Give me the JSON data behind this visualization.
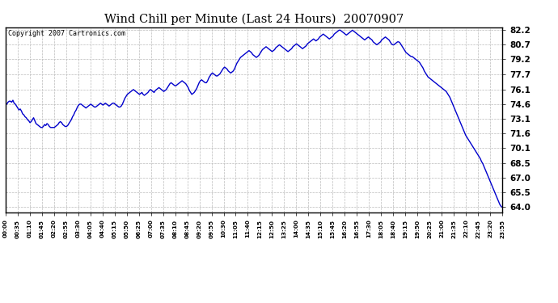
{
  "title": "Wind Chill per Minute (Last 24 Hours)  20070907",
  "copyright_text": "Copyright 2007 Cartronics.com",
  "line_color": "#0000CC",
  "background_color": "#ffffff",
  "plot_bg_color": "#ffffff",
  "grid_color": "#bbbbbb",
  "ylim": [
    63.5,
    82.5
  ],
  "yticks": [
    64.0,
    65.5,
    67.0,
    68.5,
    70.1,
    71.6,
    73.1,
    74.6,
    76.1,
    77.7,
    79.2,
    80.7,
    82.2
  ],
  "xtick_labels": [
    "00:00",
    "00:35",
    "01:10",
    "01:45",
    "02:20",
    "02:55",
    "03:30",
    "04:05",
    "04:40",
    "05:15",
    "05:50",
    "06:25",
    "07:00",
    "07:35",
    "08:10",
    "08:45",
    "09:20",
    "09:55",
    "10:30",
    "11:05",
    "11:40",
    "12:15",
    "12:50",
    "13:25",
    "14:00",
    "14:35",
    "15:10",
    "15:45",
    "16:20",
    "16:55",
    "17:30",
    "18:05",
    "18:40",
    "19:15",
    "19:50",
    "20:25",
    "21:00",
    "21:35",
    "22:10",
    "22:45",
    "23:20",
    "23:55"
  ],
  "data_points": [
    74.6,
    74.6,
    74.8,
    74.9,
    74.9,
    74.8,
    75.0,
    74.7,
    74.6,
    74.4,
    74.2,
    74.0,
    74.1,
    73.9,
    73.6,
    73.5,
    73.3,
    73.2,
    73.0,
    72.9,
    72.7,
    72.8,
    73.0,
    73.2,
    72.9,
    72.6,
    72.5,
    72.4,
    72.3,
    72.2,
    72.2,
    72.3,
    72.5,
    72.4,
    72.6,
    72.5,
    72.3,
    72.2,
    72.2,
    72.2,
    72.2,
    72.3,
    72.4,
    72.5,
    72.7,
    72.8,
    72.7,
    72.5,
    72.4,
    72.3,
    72.3,
    72.4,
    72.6,
    72.8,
    73.0,
    73.3,
    73.5,
    73.8,
    74.0,
    74.3,
    74.5,
    74.6,
    74.6,
    74.5,
    74.4,
    74.3,
    74.2,
    74.3,
    74.4,
    74.5,
    74.6,
    74.5,
    74.4,
    74.3,
    74.3,
    74.4,
    74.5,
    74.6,
    74.7,
    74.6,
    74.5,
    74.6,
    74.7,
    74.6,
    74.5,
    74.4,
    74.5,
    74.6,
    74.7,
    74.7,
    74.6,
    74.5,
    74.4,
    74.3,
    74.3,
    74.4,
    74.6,
    74.9,
    75.2,
    75.4,
    75.6,
    75.7,
    75.8,
    75.9,
    76.0,
    76.1,
    76.0,
    75.9,
    75.8,
    75.7,
    75.6,
    75.7,
    75.8,
    75.6,
    75.5,
    75.6,
    75.7,
    75.8,
    76.0,
    76.1,
    76.0,
    75.9,
    75.8,
    76.0,
    76.1,
    76.2,
    76.3,
    76.2,
    76.1,
    76.0,
    75.9,
    76.0,
    76.1,
    76.3,
    76.5,
    76.7,
    76.8,
    76.7,
    76.6,
    76.5,
    76.5,
    76.6,
    76.7,
    76.8,
    76.9,
    77.0,
    76.9,
    76.8,
    76.7,
    76.5,
    76.3,
    76.0,
    75.8,
    75.6,
    75.7,
    75.8,
    76.0,
    76.2,
    76.5,
    76.8,
    77.0,
    77.1,
    77.0,
    76.9,
    76.8,
    76.8,
    77.0,
    77.3,
    77.5,
    77.7,
    77.8,
    77.7,
    77.6,
    77.5,
    77.5,
    77.6,
    77.7,
    77.9,
    78.1,
    78.3,
    78.4,
    78.3,
    78.2,
    78.0,
    77.9,
    77.8,
    77.9,
    78.0,
    78.2,
    78.5,
    78.8,
    79.0,
    79.2,
    79.4,
    79.5,
    79.6,
    79.7,
    79.8,
    79.9,
    80.0,
    80.1,
    80.0,
    79.9,
    79.7,
    79.6,
    79.5,
    79.4,
    79.5,
    79.6,
    79.8,
    80.0,
    80.2,
    80.3,
    80.4,
    80.5,
    80.4,
    80.3,
    80.2,
    80.1,
    80.0,
    80.1,
    80.2,
    80.4,
    80.5,
    80.6,
    80.7,
    80.6,
    80.5,
    80.4,
    80.3,
    80.2,
    80.1,
    80.0,
    80.1,
    80.2,
    80.3,
    80.5,
    80.6,
    80.7,
    80.8,
    80.7,
    80.6,
    80.5,
    80.4,
    80.3,
    80.4,
    80.5,
    80.6,
    80.8,
    80.9,
    81.0,
    81.1,
    81.2,
    81.3,
    81.2,
    81.1,
    81.2,
    81.3,
    81.5,
    81.6,
    81.7,
    81.8,
    81.7,
    81.6,
    81.5,
    81.4,
    81.3,
    81.4,
    81.5,
    81.6,
    81.8,
    81.9,
    82.0,
    82.1,
    82.2,
    82.2,
    82.1,
    82.0,
    81.9,
    81.8,
    81.7,
    81.8,
    81.9,
    82.0,
    82.1,
    82.2,
    82.1,
    82.0,
    81.9,
    81.8,
    81.7,
    81.6,
    81.5,
    81.4,
    81.3,
    81.2,
    81.3,
    81.4,
    81.5,
    81.4,
    81.3,
    81.2,
    81.0,
    80.9,
    80.8,
    80.7,
    80.8,
    80.9,
    81.0,
    81.2,
    81.3,
    81.4,
    81.5,
    81.4,
    81.3,
    81.2,
    81.0,
    80.8,
    80.7,
    80.7,
    80.8,
    80.9,
    81.0,
    81.0,
    80.9,
    80.7,
    80.5,
    80.3,
    80.1,
    79.9,
    79.8,
    79.7,
    79.6,
    79.5,
    79.5,
    79.4,
    79.3,
    79.2,
    79.1,
    79.0,
    78.9,
    78.7,
    78.5,
    78.3,
    78.0,
    77.8,
    77.6,
    77.4,
    77.3,
    77.2,
    77.1,
    77.0,
    76.9,
    76.8,
    76.7,
    76.6,
    76.5,
    76.4,
    76.3,
    76.2,
    76.1,
    76.0,
    75.9,
    75.7,
    75.5,
    75.3,
    75.0,
    74.7,
    74.4,
    74.1,
    73.8,
    73.5,
    73.2,
    72.9,
    72.6,
    72.3,
    72.0,
    71.7,
    71.4,
    71.2,
    71.0,
    70.8,
    70.6,
    70.4,
    70.2,
    70.0,
    69.8,
    69.6,
    69.4,
    69.2,
    69.0,
    68.7,
    68.5,
    68.2,
    67.9,
    67.6,
    67.3,
    67.0,
    66.7,
    66.4,
    66.1,
    65.8,
    65.5,
    65.2,
    64.9,
    64.6,
    64.3,
    64.1,
    64.0
  ]
}
